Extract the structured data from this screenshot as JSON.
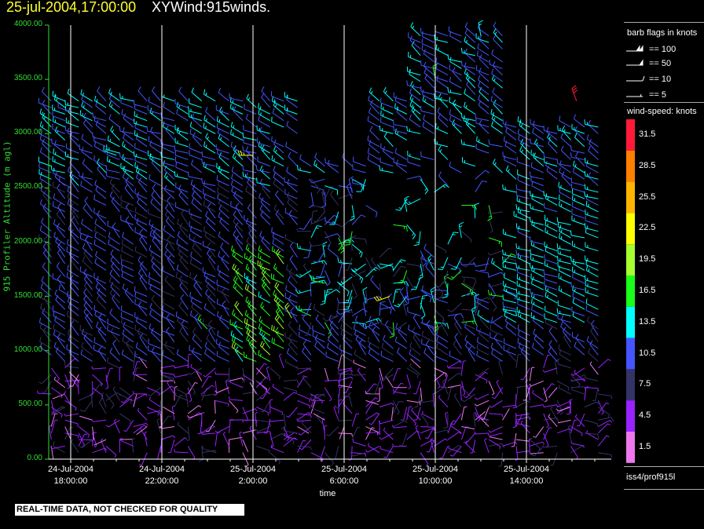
{
  "header": {
    "date": "25-jul-2004,17:00:00",
    "title": "XYWind:915winds."
  },
  "footer_notice": "REAL-TIME DATA, NOT CHECKED FOR QUALITY",
  "source_label": "iss4/prof915l",
  "legend": {
    "flags_title": "barb flags in knots",
    "flags": [
      {
        "value": 100,
        "label": "== 100"
      },
      {
        "value": 50,
        "label": "== 50"
      },
      {
        "value": 10,
        "label": "== 10"
      },
      {
        "value": 5,
        "label": "== 5"
      }
    ],
    "speed_title": "wind-speed: knots",
    "speed_bins": [
      {
        "label": "31.5",
        "color": "#ff1a3a"
      },
      {
        "label": "28.5",
        "color": "#ff8000"
      },
      {
        "label": "25.5",
        "color": "#ffb400"
      },
      {
        "label": "22.5",
        "color": "#ffff00"
      },
      {
        "label": "19.5",
        "color": "#a6ff2e"
      },
      {
        "label": "16.5",
        "color": "#1aff1a"
      },
      {
        "label": "13.5",
        "color": "#00ffff"
      },
      {
        "label": "10.5",
        "color": "#4455ff"
      },
      {
        "label": "7.5",
        "color": "#333366"
      },
      {
        "label": "4.5",
        "color": "#9922ff"
      },
      {
        "label": "1.5",
        "color": "#ee77ee"
      }
    ]
  },
  "chart_data": {
    "type": "scatter",
    "subtype": "wind-barb time-height profile",
    "xlabel": "time",
    "ylabel": "915 Profiler Altitude (m agl)",
    "ylim": [
      0,
      4000
    ],
    "yticks": [
      "0.00",
      "500.00",
      "1000.00",
      "1500.00",
      "2000.00",
      "2500.00",
      "3000.00",
      "3500.00",
      "4000.00"
    ],
    "xticks": [
      {
        "line1": "24-Jul-2004",
        "line2": "18:00:00",
        "hour": 0
      },
      {
        "line1": "24-Jul-2004",
        "line2": "22:00:00",
        "hour": 4
      },
      {
        "line1": "25-Jul-2004",
        "line2": "2:00:00",
        "hour": 8
      },
      {
        "line1": "25-Jul-2004",
        "line2": "6:00:00",
        "hour": 12
      },
      {
        "line1": "25-Jul-2004",
        "line2": "10:00:00",
        "hour": 16
      },
      {
        "line1": "25-Jul-2004",
        "line2": "14:00:00",
        "hour": 20
      }
    ],
    "xlim_hours_from_first_tick": [
      -1.0,
      23.9
    ],
    "grid": "vertical lines at x ticks",
    "barbs_sample": [
      {
        "hour": 0.0,
        "alt": 3200,
        "speed": 10.5,
        "dir": 290
      },
      {
        "hour": 0.0,
        "alt": 2500,
        "speed": 10.5,
        "dir": 300
      },
      {
        "hour": 0.0,
        "alt": 1500,
        "speed": 10.5,
        "dir": 300
      },
      {
        "hour": 0.0,
        "alt": 500,
        "speed": 4.5,
        "dir": 330
      },
      {
        "hour": 2.0,
        "alt": 2800,
        "speed": 13.5,
        "dir": 290
      },
      {
        "hour": 4.0,
        "alt": 2000,
        "speed": 10.5,
        "dir": 300
      },
      {
        "hour": 6.0,
        "alt": 1200,
        "speed": 16.5,
        "dir": 315
      },
      {
        "hour": 8.0,
        "alt": 2800,
        "speed": 22.5,
        "dir": 270
      },
      {
        "hour": 9.7,
        "alt": 1300,
        "speed": 19.5,
        "dir": 330
      },
      {
        "hour": 14.0,
        "alt": 1500,
        "speed": 22.5,
        "dir": 250
      },
      {
        "hour": 16.0,
        "alt": 3500,
        "speed": 16.5,
        "dir": 350
      },
      {
        "hour": 18.0,
        "alt": 3900,
        "speed": 13.5,
        "dir": 350
      },
      {
        "hour": 20.0,
        "alt": 2200,
        "speed": 13.5,
        "dir": 290
      },
      {
        "hour": 22.2,
        "alt": 3300,
        "speed": 31.5,
        "dir": 340
      },
      {
        "hour": 12.0,
        "alt": 300,
        "speed": 1.5,
        "dir": 200
      }
    ]
  }
}
